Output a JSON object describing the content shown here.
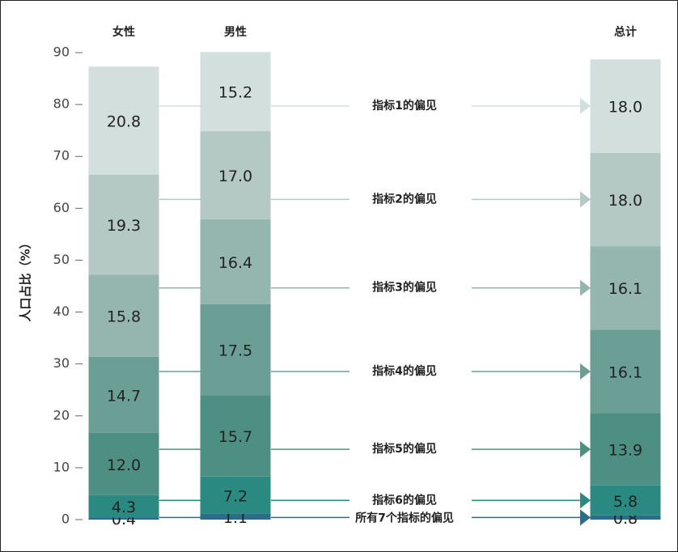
{
  "chart_data": {
    "type": "stacked-bar",
    "y_label": "人口占比（%）",
    "categories": [
      "女性",
      "男性",
      "总计"
    ],
    "series": [
      {
        "name": "所有7个指标的偏见",
        "color": "#2b6c86",
        "values": [
          0.4,
          1.1,
          0.8
        ],
        "value_labels": [
          "0.4",
          "1.1",
          "0.8"
        ]
      },
      {
        "name": "指标6的偏见",
        "color": "#2a8a82",
        "values": [
          4.3,
          7.2,
          5.8
        ],
        "value_labels": [
          "4.3",
          "7.2",
          "5.8"
        ]
      },
      {
        "name": "指标5的偏见",
        "color": "#4e8f84",
        "values": [
          12.0,
          15.7,
          13.9
        ],
        "value_labels": [
          "12.0",
          "15.7",
          "13.9"
        ]
      },
      {
        "name": "指标4的偏见",
        "color": "#6b9e94",
        "values": [
          14.7,
          17.5,
          16.1
        ],
        "value_labels": [
          "14.7",
          "17.5",
          "16.1"
        ]
      },
      {
        "name": "指标3的偏见",
        "color": "#95b5af",
        "values": [
          15.8,
          16.4,
          16.1
        ],
        "value_labels": [
          "15.8",
          "16.4",
          "16.1"
        ]
      },
      {
        "name": "指标2的偏见",
        "color": "#b4c8c4",
        "values": [
          19.3,
          17.0,
          18.0
        ],
        "value_labels": [
          "19.3",
          "17.0",
          "18.0"
        ]
      },
      {
        "name": "指标1的偏见",
        "color": "#d3dfdc",
        "values": [
          20.8,
          15.2,
          18.0
        ],
        "value_labels": [
          "20.8",
          "15.2",
          "18.0"
        ]
      }
    ],
    "ylim": [
      0,
      90
    ],
    "yticks": [
      0,
      10,
      20,
      30,
      40,
      50,
      60,
      70,
      80,
      90
    ]
  }
}
